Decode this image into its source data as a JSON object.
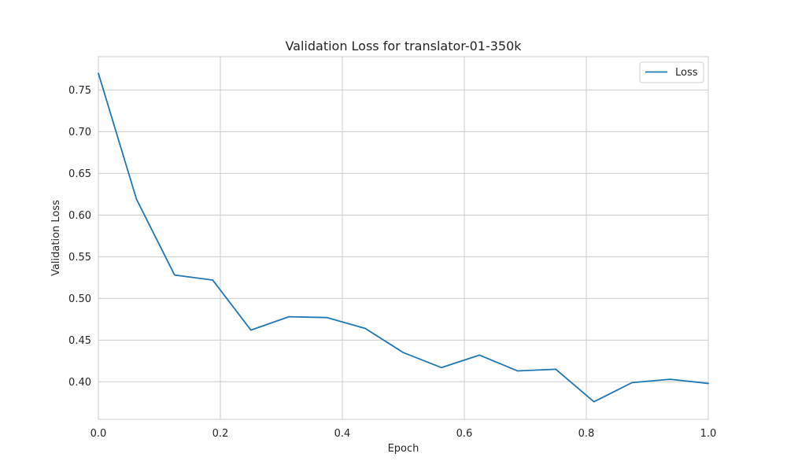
{
  "chart_data": {
    "type": "line",
    "title": "Validation Loss for translator-01-350k",
    "xlabel": "Epoch",
    "ylabel": "Validation Loss",
    "xlim": [
      0.0,
      1.0
    ],
    "ylim": [
      0.355,
      0.79
    ],
    "xticks": [
      "0.0",
      "0.2",
      "0.4",
      "0.6",
      "0.8",
      "1.0"
    ],
    "yticks": [
      "0.40",
      "0.45",
      "0.50",
      "0.55",
      "0.60",
      "0.65",
      "0.70",
      "0.75"
    ],
    "grid": true,
    "legend_position": "upper right",
    "series": [
      {
        "name": "Loss",
        "color": "#1f77b4",
        "x": [
          0.0,
          0.0625,
          0.125,
          0.1875,
          0.25,
          0.3125,
          0.375,
          0.4375,
          0.5,
          0.5625,
          0.625,
          0.6875,
          0.75,
          0.8125,
          0.875,
          0.9375,
          1.0
        ],
        "y": [
          0.77,
          0.619,
          0.528,
          0.522,
          0.462,
          0.478,
          0.477,
          0.464,
          0.435,
          0.417,
          0.432,
          0.413,
          0.415,
          0.376,
          0.399,
          0.403,
          0.398
        ]
      }
    ]
  }
}
